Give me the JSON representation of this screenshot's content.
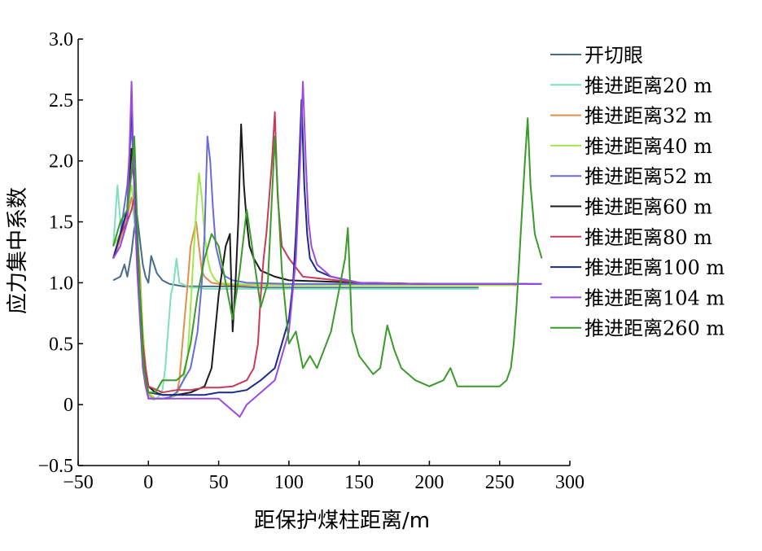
{
  "chart_data": {
    "type": "line",
    "title": "",
    "xlabel": "距保护煤柱距离/m",
    "ylabel": "应力集中系数",
    "xlim": [
      -50,
      300
    ],
    "ylim": [
      -0.5,
      3.0
    ],
    "xticks": [
      -50,
      0,
      50,
      100,
      150,
      200,
      250,
      300
    ],
    "yticks": [
      -0.5,
      0,
      0.5,
      1.0,
      1.5,
      2.0,
      2.5,
      3.0
    ],
    "ytick_labels": [
      "−0.5",
      "0",
      "0.5",
      "1.0",
      "1.5",
      "2.0",
      "2.5",
      "3.0"
    ],
    "xtick_labels": [
      "−50",
      "0",
      "50",
      "100",
      "150",
      "200",
      "250",
      "300"
    ],
    "grid": false,
    "legend_position": "right",
    "series": [
      {
        "name": "开切眼",
        "color": "#4a6a8a",
        "x": [
          -25,
          -20,
          -17,
          -15,
          -12,
          -10,
          -8,
          -6,
          -4,
          -2,
          0,
          2,
          4,
          6,
          10,
          15,
          20,
          25,
          30,
          40,
          60,
          80,
          100,
          150,
          200,
          235
        ],
        "y": [
          1.02,
          1.05,
          1.15,
          1.05,
          1.25,
          1.45,
          1.55,
          1.35,
          1.15,
          1.05,
          1.0,
          1.22,
          1.15,
          1.08,
          1.02,
          0.99,
          0.98,
          0.97,
          0.97,
          0.97,
          0.97,
          0.96,
          0.96,
          0.96,
          0.96,
          0.96
        ]
      },
      {
        "name": "推进距离20 m",
        "color": "#7fe0b8",
        "x": [
          -25,
          -22,
          -20,
          -18,
          -15,
          -12,
          -10,
          -8,
          -6,
          -4,
          -2,
          0,
          2,
          4,
          6,
          8,
          10,
          12,
          14,
          16,
          18,
          20,
          22,
          24,
          26,
          28,
          30,
          35,
          40,
          60,
          100,
          150,
          200,
          235
        ],
        "y": [
          1.3,
          1.8,
          1.5,
          1.4,
          1.6,
          1.7,
          1.5,
          1.3,
          1.0,
          0.5,
          0.3,
          0.08,
          0.05,
          0.04,
          0.05,
          0.08,
          0.12,
          0.3,
          0.6,
          0.9,
          1.0,
          1.2,
          1.0,
          0.99,
          0.98,
          0.97,
          0.96,
          0.96,
          0.95,
          0.95,
          0.95,
          0.95,
          0.95,
          0.95
        ]
      },
      {
        "name": "推进距离32 m",
        "color": "#e0904a",
        "x": [
          -25,
          -20,
          -15,
          -12,
          -10,
          -8,
          -6,
          -4,
          -2,
          0,
          3,
          6,
          10,
          15,
          20,
          22,
          25,
          28,
          30,
          32,
          34,
          36,
          38,
          40,
          45,
          50,
          60,
          100,
          150,
          200,
          262
        ],
        "y": [
          1.2,
          1.35,
          1.55,
          1.7,
          1.6,
          1.4,
          1.1,
          0.6,
          0.3,
          0.1,
          0.05,
          0.05,
          0.05,
          0.05,
          0.08,
          0.2,
          0.6,
          1.0,
          1.3,
          1.4,
          1.5,
          1.3,
          1.1,
          1.05,
          1.0,
          0.99,
          0.98,
          0.98,
          0.98,
          0.98,
          0.98
        ]
      },
      {
        "name": "推进距离40 m",
        "color": "#9ee84a",
        "x": [
          -25,
          -20,
          -15,
          -12,
          -10,
          -8,
          -6,
          -4,
          -2,
          0,
          5,
          10,
          15,
          20,
          25,
          28,
          30,
          32,
          34,
          36,
          38,
          40,
          42,
          44,
          46,
          48,
          50,
          60,
          100,
          150,
          200,
          260
        ],
        "y": [
          1.3,
          1.4,
          1.6,
          1.8,
          1.6,
          1.3,
          1.0,
          0.6,
          0.3,
          0.1,
          0.05,
          0.05,
          0.05,
          0.08,
          0.2,
          0.4,
          0.8,
          1.2,
          1.6,
          1.9,
          1.7,
          1.4,
          1.2,
          1.1,
          1.05,
          1.02,
          1.0,
          0.99,
          0.98,
          0.98,
          0.98,
          0.98
        ]
      },
      {
        "name": "推进距离52 m",
        "color": "#6a6adf",
        "x": [
          -25,
          -20,
          -15,
          -12,
          -10,
          -8,
          -6,
          -4,
          -2,
          0,
          5,
          10,
          15,
          20,
          25,
          30,
          35,
          38,
          40,
          42,
          44,
          46,
          48,
          50,
          52,
          55,
          60,
          70,
          100,
          150,
          200,
          270
        ],
        "y": [
          1.2,
          1.4,
          1.8,
          2.3,
          1.8,
          1.2,
          0.8,
          0.5,
          0.2,
          0.05,
          0.05,
          0.05,
          0.06,
          0.1,
          0.2,
          0.3,
          0.6,
          1.0,
          1.4,
          2.2,
          2.0,
          1.6,
          1.3,
          1.2,
          1.1,
          1.05,
          1.02,
          1.0,
          0.99,
          0.99,
          0.99,
          0.99
        ]
      },
      {
        "name": "推进距离60 m",
        "color": "#1a1a1a",
        "x": [
          -25,
          -20,
          -15,
          -12,
          -10,
          -8,
          -6,
          -4,
          -2,
          0,
          5,
          10,
          20,
          30,
          40,
          45,
          50,
          55,
          58,
          60,
          62,
          64,
          66,
          68,
          70,
          72,
          75,
          80,
          90,
          100,
          150,
          200,
          270
        ],
        "y": [
          1.2,
          1.4,
          1.6,
          2.1,
          1.8,
          1.3,
          0.9,
          0.5,
          0.3,
          0.15,
          0.1,
          0.08,
          0.08,
          0.1,
          0.15,
          0.3,
          0.9,
          1.3,
          1.4,
          0.6,
          1.0,
          1.5,
          2.3,
          1.8,
          1.5,
          1.3,
          1.2,
          1.1,
          1.05,
          1.02,
          1.0,
          0.99,
          0.99
        ]
      },
      {
        "name": "推进距离80 m",
        "color": "#c83a5a",
        "x": [
          -25,
          -20,
          -15,
          -12,
          -10,
          -8,
          -6,
          -4,
          -2,
          0,
          10,
          20,
          30,
          40,
          50,
          60,
          70,
          75,
          78,
          80,
          82,
          84,
          86,
          88,
          90,
          92,
          95,
          100,
          110,
          150,
          200,
          280
        ],
        "y": [
          1.2,
          1.4,
          1.5,
          1.6,
          1.7,
          1.2,
          0.8,
          0.5,
          0.3,
          0.15,
          0.1,
          0.12,
          0.12,
          0.14,
          0.14,
          0.15,
          0.2,
          0.3,
          0.5,
          0.9,
          1.2,
          1.4,
          1.7,
          2.0,
          2.4,
          1.7,
          1.3,
          1.2,
          1.05,
          1.0,
          0.99,
          0.99
        ]
      },
      {
        "name": "推进距离100 m",
        "color": "#1a2a8a",
        "x": [
          -25,
          -20,
          -15,
          -12,
          -10,
          -8,
          -6,
          -4,
          -2,
          0,
          10,
          20,
          30,
          40,
          50,
          60,
          70,
          80,
          90,
          95,
          100,
          103,
          105,
          107,
          109,
          111,
          113,
          115,
          120,
          130,
          150,
          200,
          280
        ],
        "y": [
          1.2,
          1.4,
          1.6,
          2.5,
          1.8,
          1.2,
          0.8,
          0.4,
          0.2,
          0.1,
          0.08,
          0.08,
          0.08,
          0.08,
          0.1,
          0.1,
          0.12,
          0.2,
          0.3,
          0.5,
          0.7,
          1.0,
          1.4,
          1.9,
          2.5,
          1.8,
          1.4,
          1.2,
          1.1,
          1.05,
          1.0,
          0.99,
          0.99
        ]
      },
      {
        "name": "推进距离104 m",
        "color": "#9a4ae0",
        "x": [
          -25,
          -20,
          -15,
          -12,
          -10,
          -8,
          -6,
          -4,
          -2,
          0,
          10,
          20,
          30,
          40,
          50,
          60,
          65,
          70,
          75,
          80,
          90,
          100,
          105,
          108,
          110,
          112,
          114,
          116,
          120,
          130,
          150,
          200,
          280
        ],
        "y": [
          1.2,
          1.3,
          1.5,
          2.65,
          1.7,
          1.1,
          0.7,
          0.3,
          0.15,
          0.05,
          0.05,
          0.05,
          0.05,
          0.05,
          0.05,
          -0.05,
          -0.1,
          0.0,
          0.05,
          0.1,
          0.2,
          0.6,
          1.2,
          2.0,
          2.65,
          2.0,
          1.5,
          1.3,
          1.15,
          1.05,
          1.0,
          0.99,
          0.99
        ]
      },
      {
        "name": "推进距离260 m",
        "color": "#3a9a2a",
        "x": [
          -25,
          -20,
          -15,
          -12,
          -10,
          -8,
          -6,
          -4,
          -2,
          0,
          5,
          10,
          20,
          25,
          30,
          35,
          40,
          45,
          50,
          55,
          60,
          65,
          70,
          75,
          80,
          85,
          90,
          95,
          100,
          105,
          110,
          115,
          120,
          130,
          135,
          140,
          142,
          145,
          150,
          160,
          165,
          170,
          175,
          180,
          190,
          200,
          210,
          215,
          220,
          230,
          240,
          250,
          255,
          258,
          260,
          262,
          264,
          266,
          268,
          270,
          272,
          275,
          280
        ],
        "y": [
          1.3,
          1.5,
          1.6,
          1.9,
          2.2,
          1.5,
          0.9,
          0.4,
          0.2,
          0.1,
          0.1,
          0.2,
          0.2,
          0.25,
          0.5,
          0.9,
          1.2,
          1.4,
          1.3,
          1.0,
          0.7,
          1.1,
          1.6,
          1.2,
          0.8,
          1.0,
          2.2,
          1.1,
          0.5,
          0.6,
          0.3,
          0.4,
          0.3,
          0.6,
          0.9,
          1.2,
          1.45,
          0.6,
          0.4,
          0.25,
          0.3,
          0.65,
          0.45,
          0.3,
          0.2,
          0.15,
          0.2,
          0.3,
          0.15,
          0.15,
          0.15,
          0.15,
          0.2,
          0.3,
          0.5,
          0.8,
          1.2,
          1.6,
          2.0,
          2.35,
          1.8,
          1.4,
          1.2
        ]
      }
    ]
  }
}
